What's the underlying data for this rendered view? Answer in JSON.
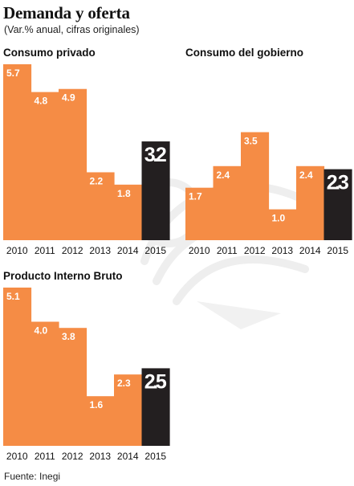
{
  "title": "Demanda y oferta",
  "subtitle": "(Var.% anual, cifras originales)",
  "source": "Fuente: Inegi",
  "colors": {
    "bar": "#f58c45",
    "highlight": "#231f20",
    "label": "#ffffff",
    "watermark": "#f0f0f0"
  },
  "chart_data": [
    {
      "type": "bar",
      "title": "Consumo privado",
      "categories": [
        "2010",
        "2011",
        "2012",
        "2013",
        "2014",
        "2015"
      ],
      "values": [
        5.7,
        4.8,
        4.9,
        2.2,
        1.8,
        3.2
      ],
      "labels": [
        "5.7",
        "4.8",
        "4.9",
        "2.2",
        "1.8",
        "3.2"
      ],
      "highlight_index": 5,
      "ylim": [
        0,
        5.7
      ]
    },
    {
      "type": "bar",
      "title": "Consumo del gobierno",
      "categories": [
        "2010",
        "2011",
        "2012",
        "2013",
        "2014",
        "2015"
      ],
      "values": [
        1.7,
        2.4,
        3.5,
        1.0,
        2.4,
        2.3
      ],
      "labels": [
        "1.7",
        "2.4",
        "3.5",
        "1.0",
        "2.4",
        "2.3"
      ],
      "highlight_index": 5,
      "ylim": [
        0,
        5.7
      ]
    },
    {
      "type": "bar",
      "title": "Producto Interno Bruto",
      "categories": [
        "2010",
        "2011",
        "2012",
        "2013",
        "2014",
        "2015"
      ],
      "values": [
        5.1,
        4.0,
        3.8,
        1.6,
        2.3,
        2.5
      ],
      "labels": [
        "5.1",
        "4.0",
        "3.8",
        "1.6",
        "2.3",
        "2.5"
      ],
      "highlight_index": 5,
      "ylim": [
        0,
        5.1
      ]
    }
  ]
}
